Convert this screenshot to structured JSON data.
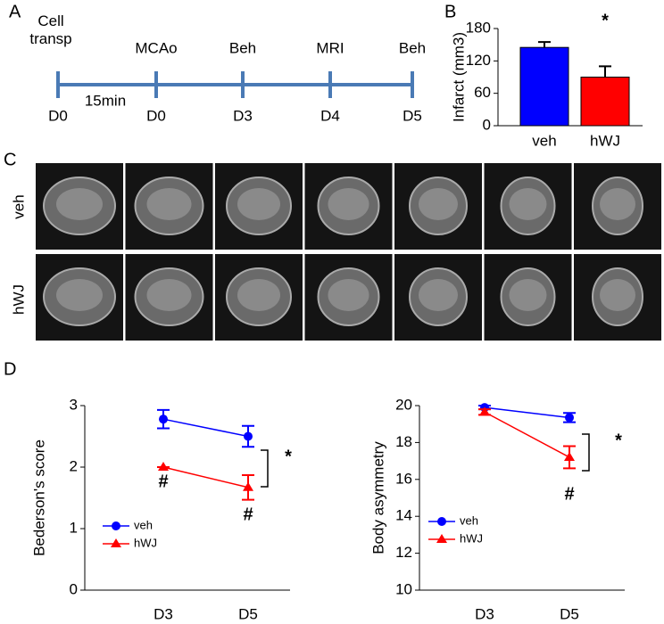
{
  "panels": [
    "A",
    "B",
    "C",
    "D"
  ],
  "timeline": {
    "events": [
      "Cell transp",
      "MCAo",
      "Beh",
      "MRI",
      "Beh"
    ],
    "days": [
      "D0",
      "D0",
      "D3",
      "D4",
      "D5"
    ],
    "interval": "15min"
  },
  "mri": {
    "rows": [
      "veh",
      "hWJ"
    ]
  },
  "chart_data": [
    {
      "type": "bar",
      "ylabel": "Infarct (mm3)",
      "categories": [
        "veh",
        "hWJ"
      ],
      "values": [
        145,
        90
      ],
      "errors": [
        10,
        20
      ],
      "colors": [
        "#0000ff",
        "#ff0000"
      ],
      "ylim": [
        0,
        180
      ],
      "yticks": [
        0,
        60,
        120,
        180
      ],
      "annotations": [
        "*"
      ]
    },
    {
      "type": "line",
      "ylabel": "Bederson's score",
      "categories": [
        "D3",
        "D5"
      ],
      "series": [
        {
          "name": "veh",
          "color": "#0000ff",
          "marker": "circle",
          "values": [
            2.78,
            2.5
          ],
          "errors": [
            0.15,
            0.17
          ]
        },
        {
          "name": "hWJ",
          "color": "#ff0000",
          "marker": "triangle",
          "values": [
            2.0,
            1.67
          ],
          "errors": [
            0,
            0.2
          ]
        }
      ],
      "ylim": [
        0,
        3
      ],
      "yticks": [
        0,
        1,
        2,
        3
      ],
      "annotations": [
        "#",
        "#",
        "*"
      ]
    },
    {
      "type": "line",
      "ylabel": "Body asymmetry",
      "categories": [
        "D3",
        "D5"
      ],
      "series": [
        {
          "name": "veh",
          "color": "#0000ff",
          "marker": "circle",
          "values": [
            19.9,
            19.35
          ],
          "errors": [
            0.1,
            0.25
          ]
        },
        {
          "name": "hWJ",
          "color": "#ff0000",
          "marker": "triangle",
          "values": [
            19.65,
            17.2
          ],
          "errors": [
            0.15,
            0.6
          ]
        }
      ],
      "ylim": [
        10,
        20
      ],
      "yticks": [
        10,
        12,
        14,
        16,
        18,
        20
      ],
      "annotations": [
        "#",
        "*"
      ]
    }
  ]
}
